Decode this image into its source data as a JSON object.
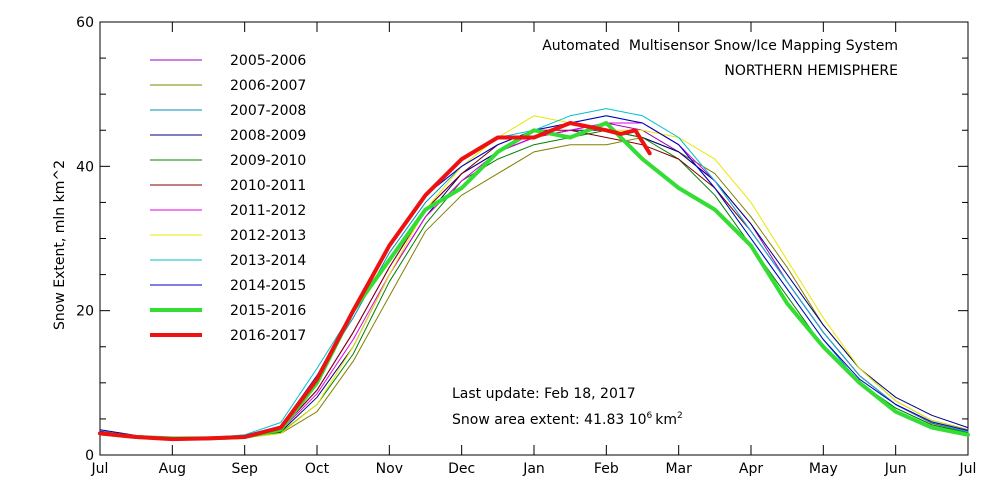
{
  "chart_data": {
    "type": "line",
    "title": "Automated  Multisensor Snow/Ice Mapping System",
    "subtitle": "NORTHERN HEMISPHERE",
    "xlabel": "",
    "ylabel": "Snow Extent, mln km^2",
    "ylim": [
      0,
      60
    ],
    "yticks": [
      0,
      20,
      40,
      60
    ],
    "xlim": [
      0,
      12
    ],
    "x_tick_labels": [
      "Jul",
      "Aug",
      "Sep",
      "Oct",
      "Nov",
      "Dec",
      "Jan",
      "Feb",
      "Mar",
      "Apr",
      "May",
      "Jun",
      "Jul"
    ],
    "x_units": "months since July 1",
    "grid": false,
    "legend_position": "top-left",
    "annotations": {
      "last_update": "Last update: Feb 18, 2017",
      "extent_text": "Snow area extent: 41.83 10",
      "extent_exp": "6",
      "extent_unit": "km",
      "extent_unit_exp": "2"
    },
    "series": [
      {
        "name": "2005-2006",
        "color": "#a000c0",
        "width": 1,
        "x": [
          0,
          0.5,
          1,
          1.5,
          2,
          2.5,
          3,
          3.5,
          4,
          4.5,
          5,
          5.5,
          6,
          6.5,
          7,
          7.5,
          8,
          8.5,
          9,
          9.5,
          10,
          10.5,
          11,
          11.5,
          12
        ],
        "values": [
          3.2,
          2.5,
          2.3,
          2.3,
          2.5,
          3.5,
          9,
          17,
          26,
          34,
          39,
          42,
          44,
          45,
          46,
          45,
          42,
          38,
          32,
          24,
          17,
          11,
          7,
          4.5,
          3.3
        ]
      },
      {
        "name": "2006-2007",
        "color": "#808000",
        "width": 1,
        "x": [
          0,
          0.5,
          1,
          1.5,
          2,
          2.5,
          3,
          3.5,
          4,
          4.5,
          5,
          5.5,
          6,
          6.5,
          7,
          7.5,
          8,
          8.5,
          9,
          9.5,
          10,
          10.5,
          11,
          11.5,
          12
        ],
        "values": [
          3.0,
          2.4,
          2.2,
          2.2,
          2.4,
          3.0,
          6,
          13,
          22,
          31,
          36,
          39,
          42,
          43,
          43,
          44,
          42,
          39,
          33,
          26,
          18,
          12,
          7.5,
          4.8,
          3.5
        ]
      },
      {
        "name": "2007-2008",
        "color": "#0090c0",
        "width": 1,
        "x": [
          0,
          0.5,
          1,
          1.5,
          2,
          2.5,
          3,
          3.5,
          4,
          4.5,
          5,
          5.5,
          6,
          6.5,
          7,
          7.5,
          8,
          8.5,
          9,
          9.5,
          10,
          10.5,
          11,
          11.5,
          12
        ],
        "values": [
          3.3,
          2.6,
          2.3,
          2.4,
          2.7,
          4.0,
          11,
          19,
          28,
          35,
          40,
          43,
          45,
          46,
          47,
          46,
          43,
          37,
          30,
          23,
          16,
          10,
          6.5,
          4.2,
          3.0
        ]
      },
      {
        "name": "2008-2009",
        "color": "#000080",
        "width": 1,
        "x": [
          0,
          0.5,
          1,
          1.5,
          2,
          2.5,
          3,
          3.5,
          4,
          4.5,
          5,
          5.5,
          6,
          6.5,
          7,
          7.5,
          8,
          8.5,
          9,
          9.5,
          10,
          10.5,
          11,
          11.5,
          12
        ],
        "values": [
          3.5,
          2.7,
          2.4,
          2.4,
          2.6,
          3.2,
          8,
          15,
          25,
          33,
          39,
          42,
          44,
          45,
          45,
          44,
          42,
          38,
          32,
          25,
          18,
          12,
          8,
          5.5,
          3.8
        ]
      },
      {
        "name": "2009-2010",
        "color": "#008000",
        "width": 1,
        "x": [
          0,
          0.5,
          1,
          1.5,
          2,
          2.5,
          3,
          3.5,
          4,
          4.5,
          5,
          5.5,
          6,
          6.5,
          7,
          7.5,
          8,
          8.5,
          9,
          9.5,
          10,
          10.5,
          11,
          11.5,
          12
        ],
        "values": [
          3.1,
          2.5,
          2.3,
          2.3,
          2.5,
          3.1,
          7,
          14,
          24,
          32,
          38,
          41,
          43,
          44,
          45,
          44,
          41,
          36,
          29,
          22,
          15,
          10,
          6.5,
          4.2,
          3.1
        ]
      },
      {
        "name": "2010-2011",
        "color": "#800000",
        "width": 1,
        "x": [
          0,
          0.5,
          1,
          1.5,
          2,
          2.5,
          3,
          3.5,
          4,
          4.5,
          5,
          5.5,
          6,
          6.5,
          7,
          7.5,
          8,
          8.5,
          9,
          9.5,
          10,
          10.5,
          11,
          11.5,
          12
        ],
        "values": [
          3.0,
          2.4,
          2.2,
          2.3,
          2.6,
          3.6,
          9,
          17,
          26,
          34,
          39,
          43,
          45,
          45,
          44,
          43,
          41,
          37,
          31,
          24,
          17,
          11,
          7,
          4.4,
          3.2
        ]
      },
      {
        "name": "2011-2012",
        "color": "#e000e0",
        "width": 1,
        "x": [
          0,
          0.5,
          1,
          1.5,
          2,
          2.5,
          3,
          3.5,
          4,
          4.5,
          5,
          5.5,
          6,
          6.5,
          7,
          7.5,
          8,
          8.5,
          9,
          9.5,
          10,
          10.5,
          11,
          11.5,
          12
        ],
        "values": [
          3.2,
          2.5,
          2.3,
          2.3,
          2.6,
          3.4,
          8.5,
          16,
          25,
          33,
          38,
          42,
          44,
          45,
          46,
          46,
          43,
          38,
          31,
          24,
          17,
          11,
          7,
          4.5,
          3.3
        ]
      },
      {
        "name": "2012-2013",
        "color": "#e8e800",
        "width": 1,
        "x": [
          0,
          0.5,
          1,
          1.5,
          2,
          2.5,
          3,
          3.5,
          4,
          4.5,
          5,
          5.5,
          6,
          6.5,
          7,
          7.5,
          8,
          8.5,
          9,
          9.5,
          10,
          10.5,
          11,
          11.5,
          12
        ],
        "values": [
          3.0,
          2.4,
          2.2,
          2.2,
          2.4,
          3.0,
          7,
          15,
          25,
          34,
          40,
          44,
          47,
          46,
          45,
          45,
          44,
          41,
          35,
          27,
          19,
          12,
          7.5,
          4.8,
          3.4
        ]
      },
      {
        "name": "2013-2014",
        "color": "#00c0d0",
        "width": 1,
        "x": [
          0,
          0.5,
          1,
          1.5,
          2,
          2.5,
          3,
          3.5,
          4,
          4.5,
          5,
          5.5,
          6,
          6.5,
          7,
          7.5,
          8,
          8.5,
          9,
          9.5,
          10,
          10.5,
          11,
          11.5,
          12
        ],
        "values": [
          3.2,
          2.6,
          2.3,
          2.4,
          2.8,
          4.5,
          12,
          20,
          29,
          36,
          41,
          44,
          45,
          47,
          48,
          47,
          44,
          38,
          31,
          24,
          17,
          11,
          7,
          4.5,
          3.2
        ]
      },
      {
        "name": "2014-2015",
        "color": "#0000c0",
        "width": 1,
        "x": [
          0,
          0.5,
          1,
          1.5,
          2,
          2.5,
          3,
          3.5,
          4,
          4.5,
          5,
          5.5,
          6,
          6.5,
          7,
          7.5,
          8,
          8.5,
          9,
          9.5,
          10,
          10.5,
          11,
          11.5,
          12
        ],
        "values": [
          3.3,
          2.6,
          2.3,
          2.4,
          2.7,
          4.0,
          11,
          20,
          29,
          36,
          40,
          43,
          45,
          46,
          47,
          46,
          43,
          37,
          30,
          23,
          16,
          10.5,
          7,
          4.6,
          3.4
        ]
      },
      {
        "name": "2015-2016",
        "color": "#33dd33",
        "width": 4,
        "x": [
          0,
          0.5,
          1,
          1.5,
          2,
          2.5,
          3,
          3.5,
          4,
          4.5,
          5,
          5.5,
          6,
          6.5,
          7,
          7.5,
          8,
          8.5,
          9,
          9.5,
          10,
          10.5,
          11,
          11.5,
          12
        ],
        "values": [
          3.0,
          2.5,
          2.3,
          2.3,
          2.5,
          3.5,
          10,
          20,
          27,
          34,
          37,
          42,
          45,
          44,
          46,
          41,
          37,
          34,
          29,
          21,
          15,
          10,
          6,
          3.8,
          2.8
        ]
      },
      {
        "name": "2016-2017",
        "color": "#ee1111",
        "width": 4,
        "x": [
          0,
          0.5,
          1,
          1.5,
          2,
          2.5,
          3,
          3.5,
          4,
          4.5,
          5,
          5.5,
          6,
          6.5,
          7,
          7.2,
          7.4,
          7.6
        ],
        "values": [
          3.0,
          2.5,
          2.2,
          2.3,
          2.5,
          3.8,
          10.5,
          20,
          29,
          36,
          41,
          44,
          44,
          46,
          45,
          44.5,
          45,
          41.8
        ]
      }
    ]
  }
}
